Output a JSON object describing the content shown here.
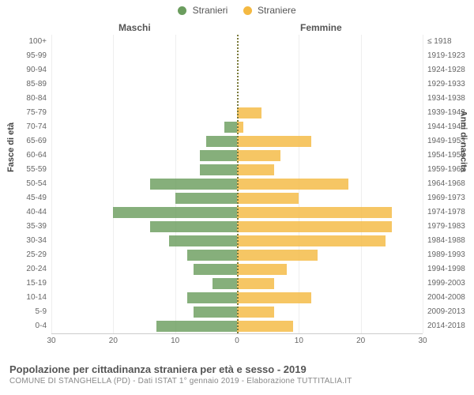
{
  "chart": {
    "type": "population-pyramid",
    "legend": [
      {
        "label": "Stranieri",
        "color": "#6b9d5e"
      },
      {
        "label": "Straniere",
        "color": "#f4b942"
      }
    ],
    "left_column_header": "Maschi",
    "right_column_header": "Femmine",
    "left_axis_label": "Fasce di età",
    "right_axis_label": "Anni di nascita",
    "x_ticks": [
      30,
      20,
      10,
      0,
      10,
      20,
      30
    ],
    "x_max": 30,
    "background_color": "#ffffff",
    "grid_color": "#eeeeee",
    "center_line_color": "#7a7a3a",
    "label_fontsize": 10,
    "axis_label_fontsize": 11,
    "legend_fontsize": 12,
    "bar_opacity": 0.82,
    "rows": [
      {
        "age": "100+",
        "birth": "≤ 1918",
        "male": 0,
        "female": 0
      },
      {
        "age": "95-99",
        "birth": "1919-1923",
        "male": 0,
        "female": 0
      },
      {
        "age": "90-94",
        "birth": "1924-1928",
        "male": 0,
        "female": 0
      },
      {
        "age": "85-89",
        "birth": "1929-1933",
        "male": 0,
        "female": 0
      },
      {
        "age": "80-84",
        "birth": "1934-1938",
        "male": 0,
        "female": 0
      },
      {
        "age": "75-79",
        "birth": "1939-1943",
        "male": 0,
        "female": 4
      },
      {
        "age": "70-74",
        "birth": "1944-1948",
        "male": 2,
        "female": 1
      },
      {
        "age": "65-69",
        "birth": "1949-1953",
        "male": 5,
        "female": 12
      },
      {
        "age": "60-64",
        "birth": "1954-1958",
        "male": 6,
        "female": 7
      },
      {
        "age": "55-59",
        "birth": "1959-1963",
        "male": 6,
        "female": 6
      },
      {
        "age": "50-54",
        "birth": "1964-1968",
        "male": 14,
        "female": 18
      },
      {
        "age": "45-49",
        "birth": "1969-1973",
        "male": 10,
        "female": 10
      },
      {
        "age": "40-44",
        "birth": "1974-1978",
        "male": 20,
        "female": 25
      },
      {
        "age": "35-39",
        "birth": "1979-1983",
        "male": 14,
        "female": 25
      },
      {
        "age": "30-34",
        "birth": "1984-1988",
        "male": 11,
        "female": 24
      },
      {
        "age": "25-29",
        "birth": "1989-1993",
        "male": 8,
        "female": 13
      },
      {
        "age": "20-24",
        "birth": "1994-1998",
        "male": 7,
        "female": 8
      },
      {
        "age": "15-19",
        "birth": "1999-2003",
        "male": 4,
        "female": 6
      },
      {
        "age": "10-14",
        "birth": "2004-2008",
        "male": 8,
        "female": 12
      },
      {
        "age": "5-9",
        "birth": "2009-2013",
        "male": 7,
        "female": 6
      },
      {
        "age": "0-4",
        "birth": "2014-2018",
        "male": 13,
        "female": 9
      }
    ]
  },
  "footer": {
    "title": "Popolazione per cittadinanza straniera per età e sesso - 2019",
    "subtitle": "COMUNE DI STANGHELLA (PD) - Dati ISTAT 1° gennaio 2019 - Elaborazione TUTTITALIA.IT"
  }
}
